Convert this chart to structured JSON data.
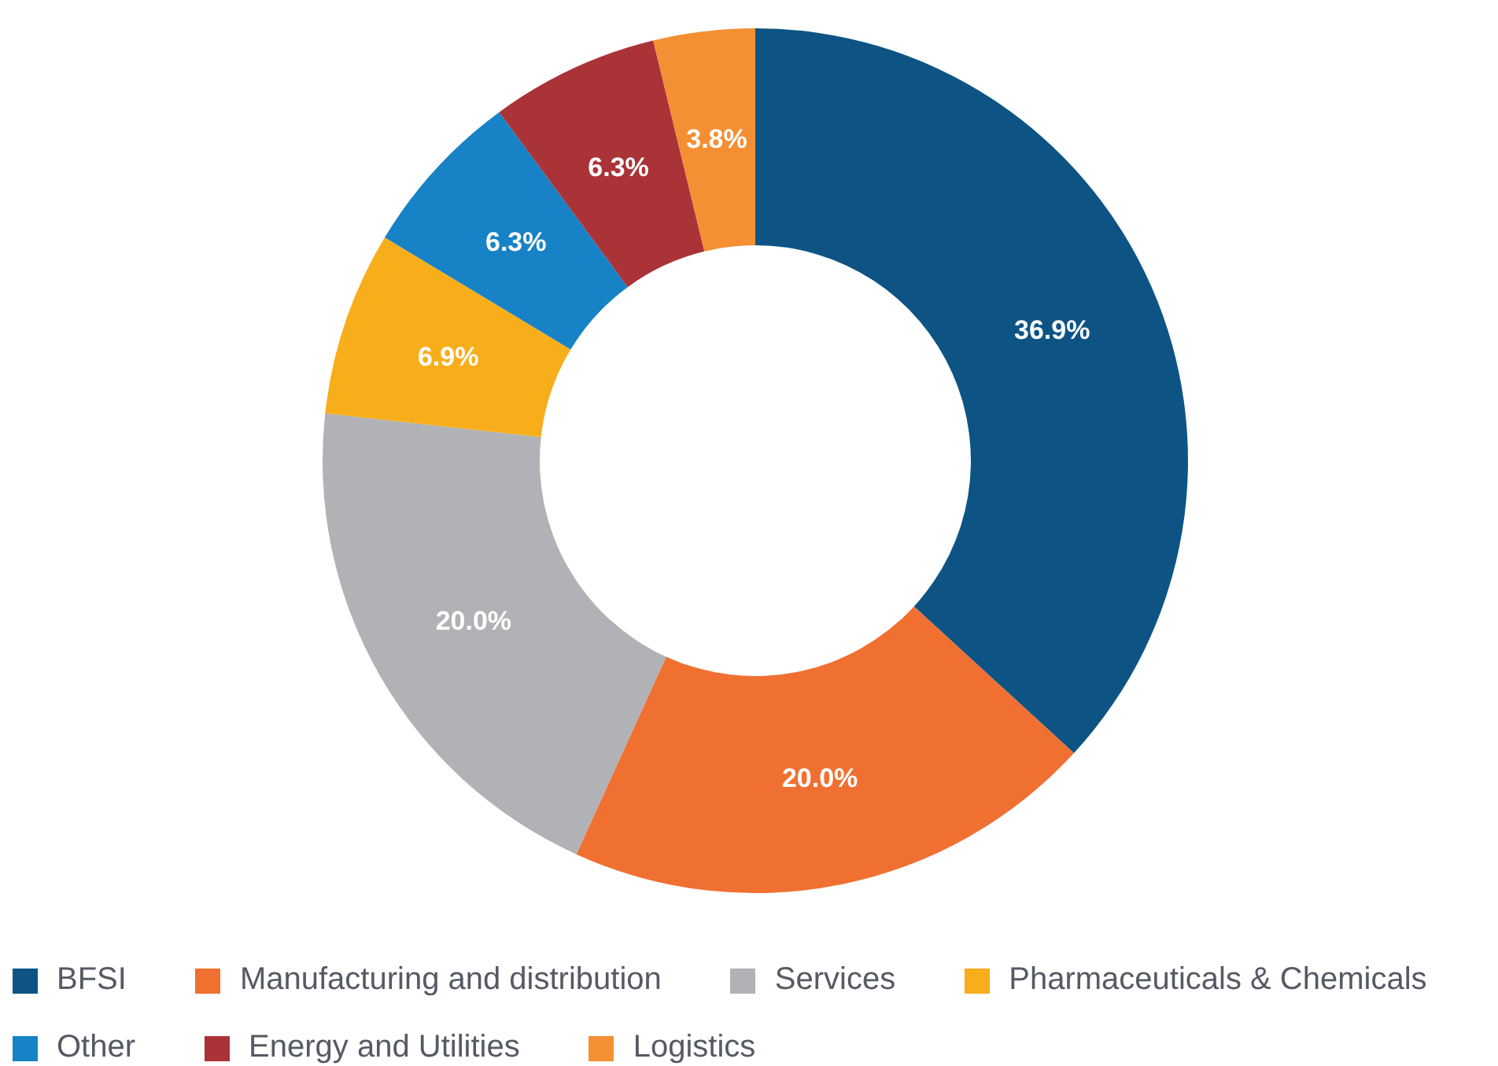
{
  "chart_data": {
    "type": "donut",
    "categories": [
      "BFSI",
      "Manufacturing and distribution",
      "Services",
      "Pharmaceuticals & Chemicals",
      "Other",
      "Energy and Utilities",
      "Logistics"
    ],
    "values": [
      36.9,
      20.0,
      20.0,
      6.9,
      6.3,
      6.3,
      3.8
    ],
    "colors": [
      "#0d5485",
      "#f07032",
      "#b1b2b5",
      "#f8ae1b",
      "#1782c5",
      "#aa3338",
      "#f48f33"
    ],
    "value_labels": [
      "36.9%",
      "20.0%",
      "20.0%",
      "6.9%",
      "6.3%",
      "6.3%",
      "3.8%"
    ],
    "legend": "bottom"
  }
}
